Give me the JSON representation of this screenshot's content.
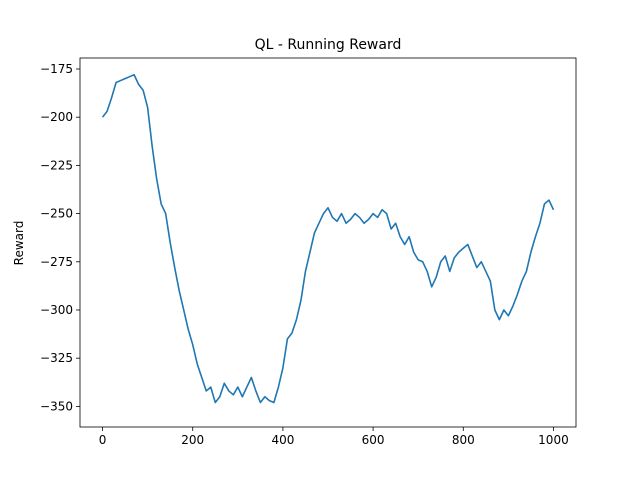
{
  "chart_data": {
    "type": "line",
    "title": "QL - Running Reward",
    "ylabel": "Reward",
    "x": [
      0,
      10,
      20,
      30,
      40,
      50,
      60,
      70,
      80,
      90,
      100,
      110,
      120,
      130,
      140,
      150,
      160,
      170,
      180,
      190,
      200,
      210,
      220,
      230,
      240,
      250,
      260,
      270,
      280,
      290,
      300,
      310,
      320,
      330,
      340,
      350,
      360,
      370,
      380,
      390,
      400,
      410,
      420,
      430,
      440,
      450,
      460,
      470,
      480,
      490,
      500,
      510,
      520,
      530,
      540,
      550,
      560,
      570,
      580,
      590,
      600,
      610,
      620,
      630,
      640,
      650,
      660,
      670,
      680,
      690,
      700,
      710,
      720,
      730,
      740,
      750,
      760,
      770,
      780,
      790,
      800,
      810,
      820,
      830,
      840,
      850,
      860,
      870,
      880,
      890,
      900,
      910,
      920,
      930,
      940,
      950,
      960,
      970,
      980,
      990,
      1000
    ],
    "series": [
      {
        "color": "#1f77b4",
        "values": [
          -200,
          -197,
          -190,
          -182,
          -181,
          -180,
          -179,
          -178,
          -183,
          -186,
          -195,
          -215,
          -232,
          -245,
          -250,
          -265,
          -278,
          -290,
          -300,
          -310,
          -318,
          -328,
          -335,
          -342,
          -340,
          -348,
          -345,
          -338,
          -342,
          -344,
          -340,
          -345,
          -340,
          -335,
          -342,
          -348,
          -345,
          -347,
          -348,
          -340,
          -330,
          -315,
          -312,
          -305,
          -295,
          -280,
          -270,
          -260,
          -255,
          -250,
          -247,
          -252,
          -254,
          -250,
          -255,
          -253,
          -250,
          -252,
          -255,
          -253,
          -250,
          -252,
          -248,
          -250,
          -258,
          -255,
          -262,
          -266,
          -262,
          -270,
          -274,
          -275,
          -280,
          -288,
          -283,
          -275,
          -272,
          -280,
          -273,
          -270,
          -268,
          -266,
          -272,
          -278,
          -275,
          -280,
          -285,
          -300,
          -305,
          -300,
          -303,
          -298,
          -292,
          -285,
          -280,
          -270,
          -262,
          -255,
          -245,
          -243,
          -248
        ]
      }
    ],
    "xlim": [
      -50,
      1050
    ],
    "ylim": [
      -360.7,
      -169.3
    ],
    "xticks": [
      0,
      200,
      400,
      600,
      800,
      1000
    ],
    "yticks": [
      {
        "value": -350,
        "label": "−350"
      },
      {
        "value": -325,
        "label": "−325"
      },
      {
        "value": -300,
        "label": "−300"
      },
      {
        "value": -275,
        "label": "−275"
      },
      {
        "value": -250,
        "label": "−250"
      },
      {
        "value": -225,
        "label": "−225"
      },
      {
        "value": -200,
        "label": "−200"
      },
      {
        "value": -175,
        "label": "−175"
      }
    ]
  }
}
